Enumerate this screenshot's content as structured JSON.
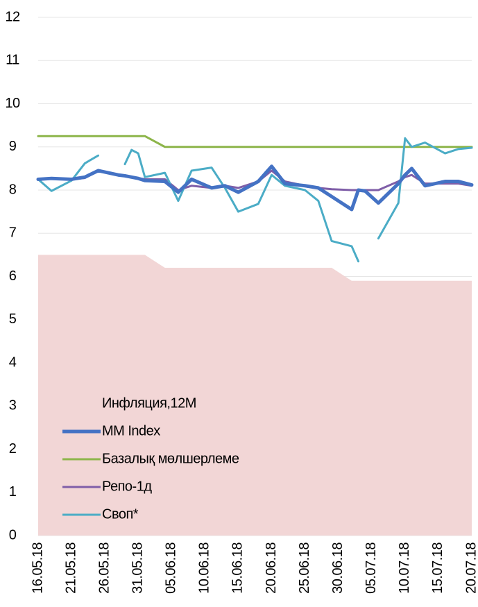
{
  "chart_data": {
    "type": "line",
    "x": [
      "16.05.18",
      "18.05.18",
      "21.05.18",
      "23.05.18",
      "25.05.18",
      "28.05.18",
      "29.05.18",
      "30.05.18",
      "31.05.18",
      "01.06.18",
      "04.06.18",
      "06.06.18",
      "08.06.18",
      "11.06.18",
      "13.06.18",
      "15.06.18",
      "18.06.18",
      "20.06.18",
      "22.06.18",
      "25.06.18",
      "27.06.18",
      "29.06.18",
      "02.07.18",
      "03.07.18",
      "04.07.18",
      "06.07.18",
      "09.07.18",
      "10.07.18",
      "11.07.18",
      "13.07.18",
      "16.07.18",
      "18.07.18",
      "20.07.18"
    ],
    "xticks": [
      "16.05.18",
      "21.05.18",
      "26.05.18",
      "31.05.18",
      "05.06.18",
      "10.06.18",
      "15.06.18",
      "20.06.18",
      "25.06.18",
      "30.06.18",
      "05.07.18",
      "10.07.18",
      "15.07.18",
      "20.07.18"
    ],
    "ylim": [
      0,
      12
    ],
    "yticks": [
      0,
      1,
      2,
      3,
      4,
      5,
      6,
      7,
      8,
      9,
      10,
      11,
      12
    ],
    "grid": true,
    "series": [
      {
        "name": "Инфляция,12М",
        "type": "area",
        "color": "#f2d6d6",
        "values": [
          6.5,
          6.5,
          6.5,
          6.5,
          6.5,
          6.5,
          6.5,
          6.5,
          6.5,
          6.5,
          6.2,
          6.2,
          6.2,
          6.2,
          6.2,
          6.2,
          6.2,
          6.2,
          6.2,
          6.2,
          6.2,
          6.2,
          5.9,
          5.9,
          5.9,
          5.9,
          5.9,
          5.9,
          5.9,
          5.9,
          5.9,
          5.9,
          5.9
        ]
      },
      {
        "name": "MM Index",
        "type": "line",
        "color": "#4472c4",
        "values": [
          8.25,
          8.27,
          8.25,
          8.3,
          8.45,
          8.35,
          8.33,
          8.3,
          8.27,
          8.22,
          8.2,
          7.95,
          8.25,
          8.05,
          8.1,
          7.95,
          8.2,
          8.55,
          8.15,
          8.1,
          8.05,
          7.85,
          7.55,
          8.0,
          7.98,
          7.7,
          8.15,
          8.35,
          8.5,
          8.1,
          8.2,
          8.2,
          8.12
        ]
      },
      {
        "name": "Базалық мөлшерлеме",
        "type": "line",
        "color": "#8db54a",
        "values": [
          9.25,
          9.25,
          9.25,
          9.25,
          9.25,
          9.25,
          9.25,
          9.25,
          9.25,
          9.25,
          9.0,
          9.0,
          9.0,
          9.0,
          9.0,
          9.0,
          9.0,
          9.0,
          9.0,
          9.0,
          9.0,
          9.0,
          9.0,
          9.0,
          9.0,
          9.0,
          9.0,
          9.0,
          9.0,
          9.0,
          9.0,
          9.0,
          9.0
        ]
      },
      {
        "name": "Репо-1д",
        "type": "line",
        "color": "#7f5ea8",
        "values": [
          8.25,
          8.27,
          8.25,
          8.28,
          8.45,
          8.35,
          8.33,
          8.3,
          8.28,
          8.25,
          8.25,
          8.0,
          8.1,
          8.05,
          8.1,
          8.05,
          8.2,
          8.45,
          8.2,
          8.1,
          8.05,
          8.02,
          8.0,
          8.0,
          8.0,
          8.0,
          8.2,
          8.3,
          8.35,
          8.15,
          8.15,
          8.15,
          8.1
        ]
      },
      {
        "name": "Своп*",
        "type": "line",
        "color": "#4bacc6",
        "values": [
          8.25,
          7.98,
          8.22,
          8.62,
          8.8,
          null,
          8.6,
          8.93,
          8.85,
          8.3,
          8.4,
          7.75,
          8.45,
          8.52,
          8.05,
          7.5,
          7.68,
          8.35,
          8.1,
          8.0,
          7.75,
          6.82,
          6.7,
          6.35,
          null,
          6.88,
          7.7,
          9.2,
          9.0,
          9.1,
          8.85,
          8.95,
          8.98
        ]
      }
    ]
  }
}
